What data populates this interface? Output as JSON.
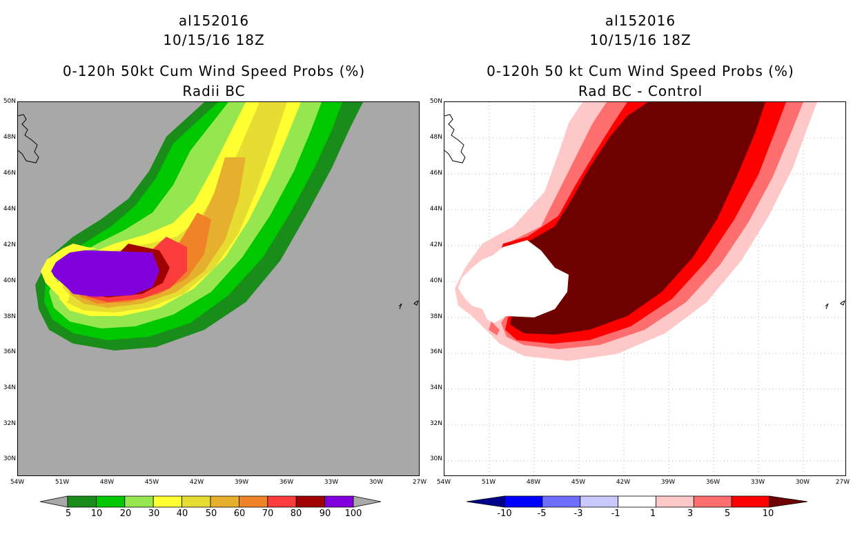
{
  "left_panel": {
    "title_line1": "al152016",
    "title_line2": "10/15/16 18Z",
    "title_line3": "0-120h 50kt Cum Wind Speed Probs (%)",
    "title_line4": "Radii BC",
    "background_color": "#a8a8a8",
    "colorbar": {
      "labels": [
        "5",
        "10",
        "20",
        "30",
        "40",
        "50",
        "60",
        "70",
        "80",
        "90",
        "100"
      ],
      "colors": [
        "#1a8c1a",
        "#00c800",
        "#96e650",
        "#ffff32",
        "#e6dc32",
        "#e6af2d",
        "#f08228",
        "#fa3c3c",
        "#a00000",
        "#8200dc"
      ],
      "end_color_left": "#a8a8a8",
      "end_color_right": "#a8a8a8"
    }
  },
  "right_panel": {
    "title_line1": "al152016",
    "title_line2": "10/15/16 18Z",
    "title_line3": "0-120h 50 kt Cum Wind Speed Probs (%)",
    "title_line4": "Rad BC - Control",
    "background_color": "#ffffff",
    "colorbar": {
      "labels": [
        "-10",
        "-5",
        "-3",
        "-1",
        "1",
        "3",
        "5",
        "10"
      ],
      "colors": [
        "#0000ff",
        "#6e6eff",
        "#c8c8ff",
        "#ffffff",
        "#ffc8c8",
        "#ff6e6e",
        "#ff0000"
      ],
      "end_color_left": "#00008c",
      "end_color_right": "#6e0000"
    }
  },
  "axes": {
    "lat_labels": [
      "50N",
      "48N",
      "46N",
      "44N",
      "42N",
      "40N",
      "38N",
      "36N",
      "34N",
      "32N",
      "30N"
    ],
    "lon_labels": [
      "54W",
      "51W",
      "48W",
      "45W",
      "42W",
      "39W",
      "36W",
      "33W",
      "30W",
      "27W"
    ]
  }
}
